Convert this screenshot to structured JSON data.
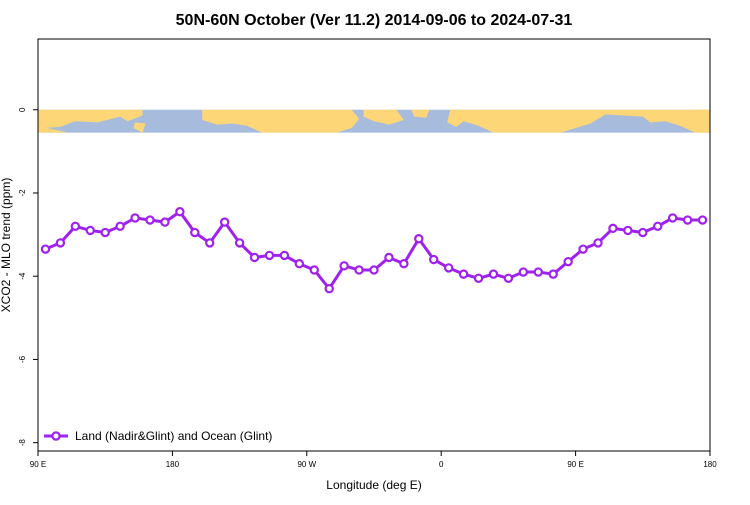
{
  "chart_data": {
    "type": "line",
    "title": "50N-60N October (Ver 11.2)   2014-09-06 to 2024-07-31",
    "xlabel": "Longitude (deg E)",
    "ylabel": "XCO2 - MLO trend (ppm)",
    "xlim": [
      90,
      540
    ],
    "ylim": [
      -8.2,
      1.7
    ],
    "x_ticks": [
      {
        "value": 90,
        "label": "90 E"
      },
      {
        "value": 180,
        "label": "180"
      },
      {
        "value": 270,
        "label": "90 W"
      },
      {
        "value": 360,
        "label": "0"
      },
      {
        "value": 450,
        "label": "90 E"
      },
      {
        "value": 540,
        "label": "180"
      }
    ],
    "y_ticks": [
      0,
      -2,
      -4,
      -6,
      -8
    ],
    "grid": false,
    "legend": {
      "position": "bottom-left"
    },
    "background_band": {
      "description": "world map strip",
      "ocean_color": "#a7bcdc",
      "land_color": "#fdd777",
      "y_range": [
        0,
        -0.55
      ]
    },
    "series": [
      {
        "name": "Land (Nadir&Glint) and Ocean (Glint)",
        "color": "#a020f0",
        "x": [
          95,
          105,
          115,
          125,
          135,
          145,
          155,
          165,
          175,
          185,
          195,
          205,
          215,
          225,
          235,
          245,
          255,
          265,
          275,
          285,
          295,
          305,
          315,
          325,
          335,
          345,
          355,
          365,
          375,
          385,
          395,
          405,
          415,
          425,
          435,
          445,
          455,
          465,
          475,
          485,
          495,
          505,
          515,
          525,
          535
        ],
        "y": [
          -3.35,
          -3.2,
          -2.8,
          -2.9,
          -2.95,
          -2.8,
          -2.6,
          -2.65,
          -2.7,
          -2.45,
          -2.95,
          -3.2,
          -2.7,
          -3.2,
          -3.55,
          -3.5,
          -3.5,
          -3.7,
          -3.85,
          -4.3,
          -3.75,
          -3.85,
          -3.85,
          -3.55,
          -3.7,
          -3.1,
          -3.6,
          -3.8,
          -3.95,
          -4.05,
          -3.95,
          -4.05,
          -3.9,
          -3.9,
          -3.95,
          -3.65,
          -3.35,
          -3.2,
          -2.85,
          -2.9,
          -2.95,
          -2.8,
          -2.6,
          -2.65,
          -2.65
        ]
      }
    ]
  }
}
